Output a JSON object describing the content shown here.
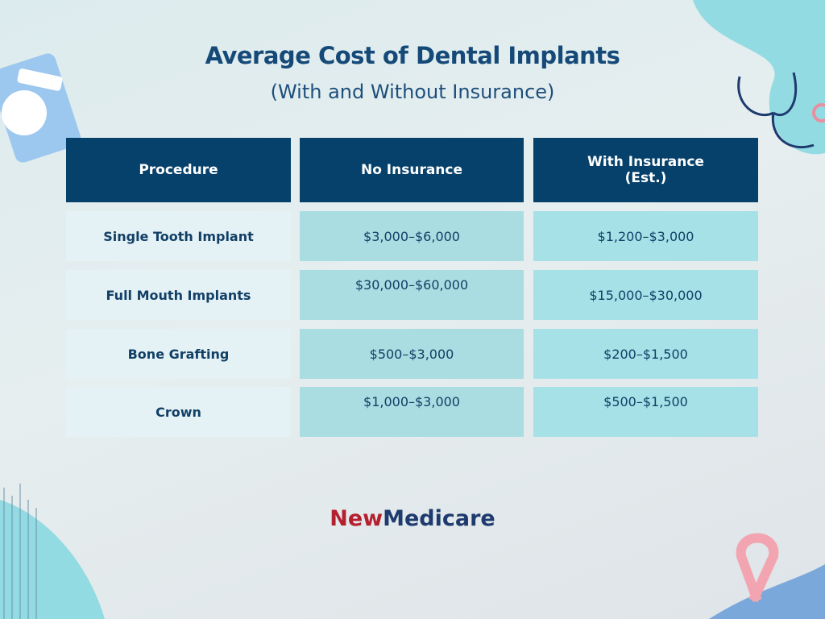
{
  "header": {
    "title": "Average Cost of Dental Implants",
    "subtitle": "(With and Without Insurance)"
  },
  "table": {
    "columns": [
      "Procedure",
      "No Insurance",
      "With Insurance\n(Est.)"
    ],
    "rows": [
      [
        "Single Tooth Implant",
        "$3,000–$6,000",
        "$1,200–$3,000"
      ],
      [
        "Full Mouth Implants",
        "$30,000–$60,000",
        "$15,000–$30,000"
      ],
      [
        "Bone Grafting",
        "$500–$3,000",
        "$200–$1,500"
      ],
      [
        "Crown",
        "$1,000–$3,000",
        "$500–$1,500"
      ]
    ]
  },
  "brand": {
    "first": "New",
    "second": "Medicare"
  }
}
